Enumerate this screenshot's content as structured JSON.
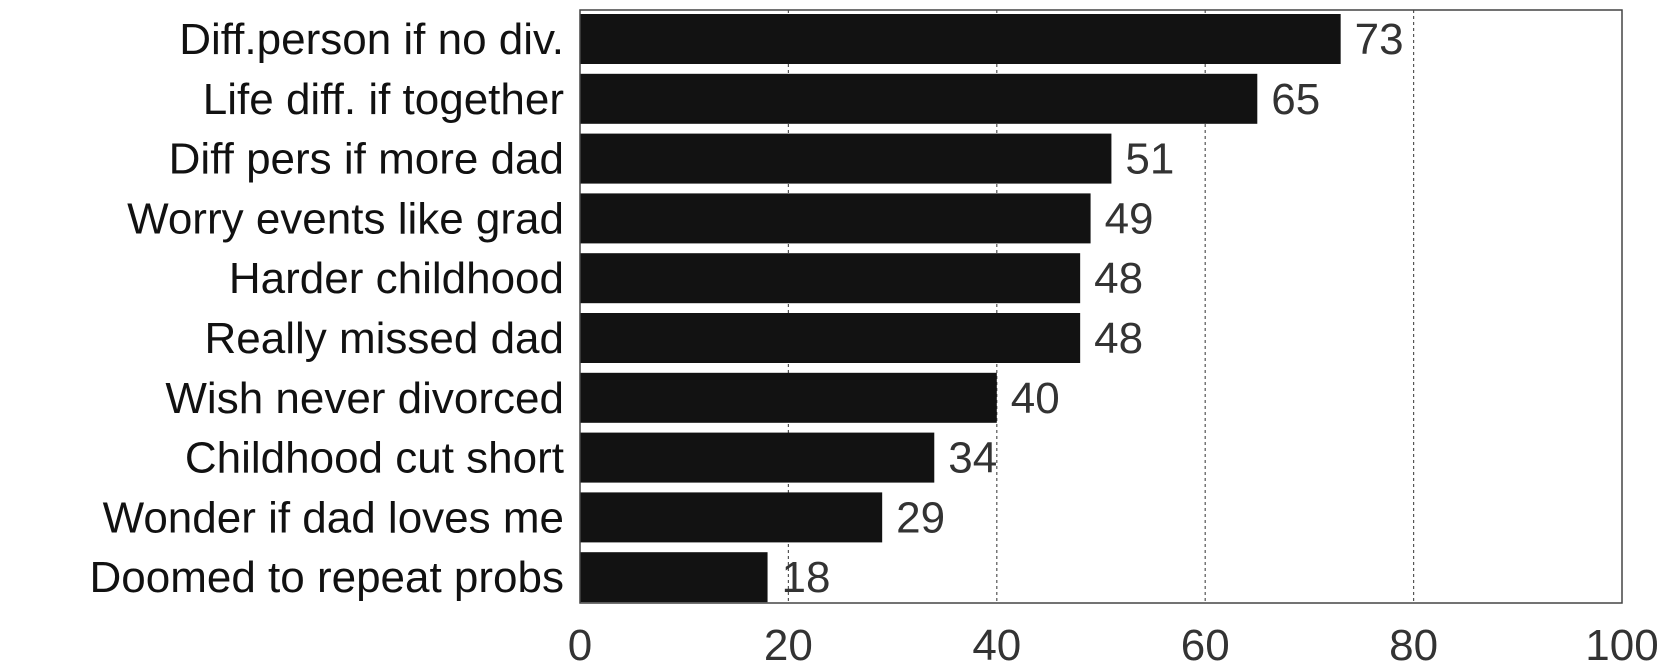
{
  "chart_data": {
    "type": "bar",
    "orientation": "horizontal",
    "categories": [
      "Diff.person if no div.",
      "Life diff. if together",
      "Diff pers if more dad",
      "Worry events like grad",
      "Harder childhood",
      "Really missed dad",
      "Wish never divorced",
      "Childhood cut short",
      "Wonder if dad loves me",
      "Doomed to repeat probs"
    ],
    "values": [
      73,
      65,
      51,
      49,
      48,
      48,
      40,
      34,
      29,
      18
    ],
    "data_labels": [
      "73",
      "65",
      "51",
      "49",
      "48",
      "48",
      "40",
      "34",
      "29",
      "18"
    ],
    "xlim": [
      0,
      100
    ],
    "xticks": [
      0,
      20,
      40,
      60,
      80,
      100
    ],
    "xtick_labels": [
      "0",
      "20",
      "40",
      "60",
      "80",
      "100"
    ],
    "grid": "vertical dotted",
    "title": "",
    "xlabel": "",
    "ylabel": "",
    "colors": {
      "bar": "#121212",
      "grid": "#555555",
      "axis": "#444444",
      "text": "#333333"
    }
  }
}
